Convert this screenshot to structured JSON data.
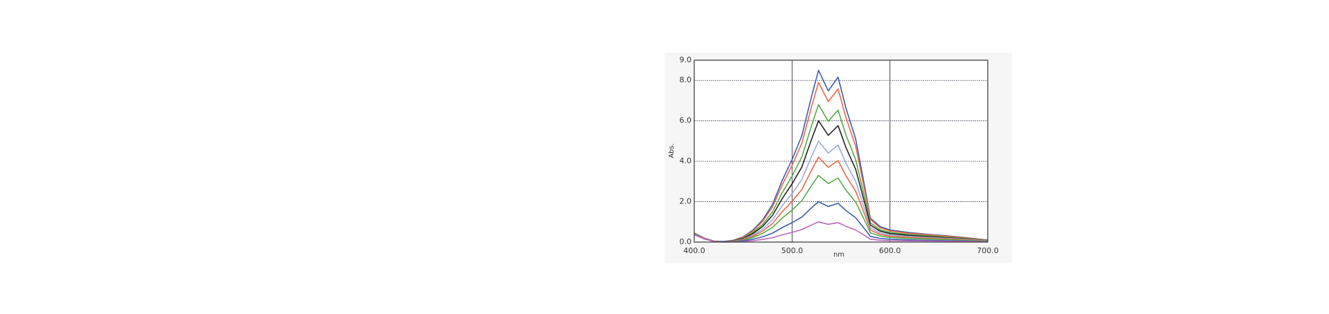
{
  "chart_data": {
    "type": "line",
    "x_label": "nm",
    "y_label": "Abs.",
    "x": [
      400,
      410,
      420,
      430,
      440,
      450,
      460,
      470,
      480,
      490,
      500,
      510,
      520,
      527,
      537,
      547,
      555,
      565,
      575,
      580,
      590,
      600,
      620,
      640,
      660,
      680,
      700
    ],
    "xlim": [
      400,
      700
    ],
    "xticks": [
      {
        "value": 400,
        "label": "400.0"
      },
      {
        "value": 500,
        "label": "500.0"
      },
      {
        "value": 600,
        "label": "600.0"
      },
      {
        "value": 700,
        "label": "700.0"
      }
    ],
    "ylim": [
      0,
      9
    ],
    "yticks": [
      {
        "value": 0,
        "label": "0.0"
      },
      {
        "value": 2,
        "label": "2.0"
      },
      {
        "value": 4,
        "label": "4.0"
      },
      {
        "value": 6,
        "label": "6.0"
      },
      {
        "value": 8,
        "label": "8.0"
      },
      {
        "value": 9,
        "label": "9.0"
      }
    ],
    "grid": true,
    "series": [
      {
        "color": "#3a5bb0",
        "values": [
          0.45,
          0.2,
          0.05,
          0.03,
          0.09,
          0.26,
          0.6,
          1.1,
          1.87,
          3.06,
          4.08,
          5.27,
          7.23,
          8.5,
          7.48,
          8.16,
          6.63,
          5.1,
          2.55,
          1.19,
          0.77,
          0.6,
          0.47,
          0.38,
          0.3,
          0.21,
          0.1
        ]
      },
      {
        "color": "#ee6644",
        "values": [
          0.44,
          0.2,
          0.05,
          0.02,
          0.08,
          0.24,
          0.55,
          1.03,
          1.74,
          2.84,
          3.79,
          4.9,
          6.72,
          7.9,
          6.95,
          7.58,
          6.16,
          4.74,
          2.37,
          1.11,
          0.71,
          0.55,
          0.43,
          0.36,
          0.28,
          0.2,
          0.09
        ]
      },
      {
        "color": "#55aa44",
        "values": [
          0.43,
          0.19,
          0.04,
          0.02,
          0.07,
          0.2,
          0.48,
          0.88,
          1.5,
          2.45,
          3.26,
          4.22,
          5.78,
          6.8,
          5.98,
          6.53,
          5.3,
          4.08,
          2.04,
          0.95,
          0.61,
          0.48,
          0.37,
          0.31,
          0.24,
          0.17,
          0.08
        ]
      },
      {
        "color": "#222222",
        "values": [
          0.42,
          0.19,
          0.04,
          0.02,
          0.06,
          0.18,
          0.42,
          0.78,
          1.32,
          2.16,
          2.88,
          3.72,
          5.1,
          6,
          5.28,
          5.76,
          4.68,
          3.6,
          1.8,
          0.84,
          0.54,
          0.42,
          0.33,
          0.27,
          0.21,
          0.15,
          0.07
        ]
      },
      {
        "color": "#99aadd",
        "values": [
          0.41,
          0.18,
          0.04,
          0.02,
          0.05,
          0.15,
          0.35,
          0.65,
          1.1,
          1.8,
          2.4,
          3.1,
          4.25,
          5,
          4.4,
          4.8,
          3.9,
          3,
          1.5,
          0.7,
          0.45,
          0.35,
          0.28,
          0.23,
          0.18,
          0.13,
          0.06
        ]
      },
      {
        "color": "#ee6644",
        "values": [
          0.4,
          0.18,
          0.04,
          0.01,
          0.04,
          0.13,
          0.29,
          0.55,
          0.92,
          1.51,
          2.02,
          2.6,
          3.57,
          4.2,
          3.7,
          4.03,
          3.28,
          2.52,
          1.26,
          0.59,
          0.38,
          0.29,
          0.23,
          0.19,
          0.15,
          0.11,
          0.05
        ]
      },
      {
        "color": "#55aa44",
        "values": [
          0.39,
          0.17,
          0.04,
          0.01,
          0.03,
          0.1,
          0.23,
          0.43,
          0.73,
          1.19,
          1.58,
          2.05,
          2.81,
          3.3,
          2.9,
          3.17,
          2.57,
          1.98,
          0.99,
          0.46,
          0.3,
          0.23,
          0.18,
          0.15,
          0.12,
          0.08,
          0.04
        ]
      },
      {
        "color": "#3a5bb0",
        "values": [
          0.37,
          0.16,
          0.03,
          0.01,
          0.02,
          0.06,
          0.14,
          0.26,
          0.44,
          0.72,
          0.96,
          1.24,
          1.7,
          2,
          1.76,
          1.92,
          1.56,
          1.2,
          0.6,
          0.28,
          0.18,
          0.14,
          0.11,
          0.09,
          0.07,
          0.05,
          0.02
        ]
      },
      {
        "color": "#bb66bb",
        "values": [
          0.36,
          0.16,
          0.03,
          0,
          0.01,
          0.03,
          0.07,
          0.13,
          0.22,
          0.36,
          0.48,
          0.62,
          0.85,
          1,
          0.88,
          0.96,
          0.78,
          0.6,
          0.3,
          0.14,
          0.09,
          0.07,
          0.06,
          0.05,
          0.04,
          0.03,
          0.01
        ]
      }
    ]
  }
}
